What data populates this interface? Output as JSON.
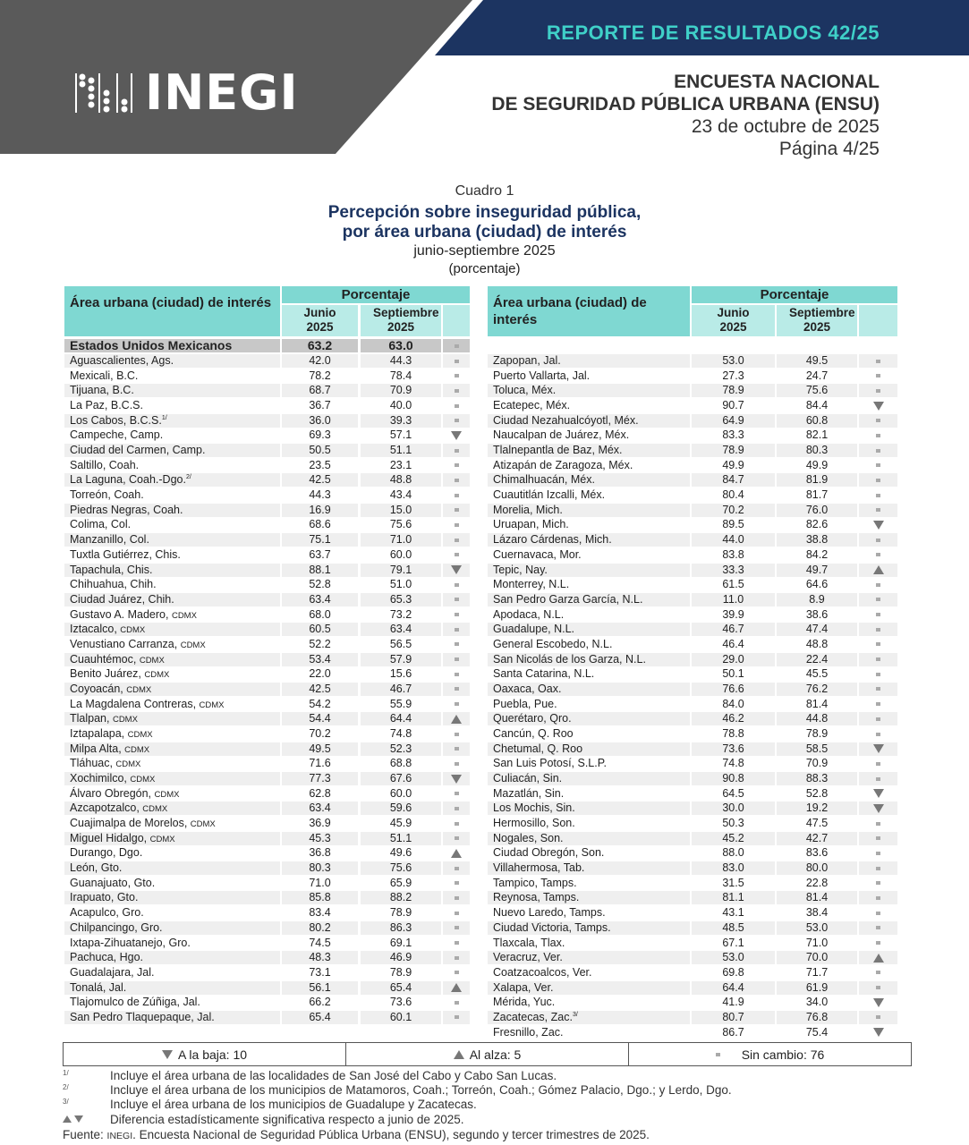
{
  "header": {
    "report": "REPORTE DE RESULTADOS 42/25",
    "logo": "INEGI",
    "survey_line1": "ENCUESTA NACIONAL",
    "survey_line2": "DE SEGURIDAD PÚBLICA URBANA (ENSU)",
    "date": "23 de octubre de 2025",
    "page": "Página 4/25"
  },
  "colors": {
    "gray": "#5a5a5a",
    "navy": "#1c3461",
    "teal_text": "#3fd0c8",
    "teal_header": "#7fd8d2",
    "teal_light": "#b9ebe7"
  },
  "caption": {
    "number": "Cuadro 1",
    "title1": "Percepción sobre inseguridad pública,",
    "title2": "por área urbana (ciudad) de interés",
    "period": "junio-septiembre 2025",
    "unit": "(porcentaje)"
  },
  "table_headers": {
    "area": "Área urbana (ciudad) de interés",
    "group": "Porcentaje",
    "jun": "Junio 2025",
    "sep": "Septiembre 2025"
  },
  "national": {
    "name": "Estados Unidos Mexicanos",
    "jun": "63.2",
    "sep": "63.0",
    "status": "same"
  },
  "left_rows": [
    {
      "name": "Aguascalientes, Ags.",
      "jun": "42.0",
      "sep": "44.3",
      "status": "same"
    },
    {
      "name": "Mexicali, B.C.",
      "jun": "78.2",
      "sep": "78.4",
      "status": "same"
    },
    {
      "name": "Tijuana, B.C.",
      "jun": "68.7",
      "sep": "70.9",
      "status": "same"
    },
    {
      "name": "La Paz, B.C.S.",
      "jun": "36.7",
      "sep": "40.0",
      "status": "same"
    },
    {
      "name": "Los Cabos, B.C.S.",
      "sup": "1/",
      "jun": "36.0",
      "sep": "39.3",
      "status": "same"
    },
    {
      "name": "Campeche, Camp.",
      "jun": "69.3",
      "sep": "57.1",
      "status": "down"
    },
    {
      "name": "Ciudad del Carmen, Camp.",
      "jun": "50.5",
      "sep": "51.1",
      "status": "same"
    },
    {
      "name": "Saltillo, Coah.",
      "jun": "23.5",
      "sep": "23.1",
      "status": "same"
    },
    {
      "name": "La Laguna, Coah.-Dgo.",
      "sup": "2/",
      "jun": "42.5",
      "sep": "48.8",
      "status": "same"
    },
    {
      "name": "Torreón, Coah.",
      "jun": "44.3",
      "sep": "43.4",
      "status": "same"
    },
    {
      "name": "Piedras Negras, Coah.",
      "jun": "16.9",
      "sep": "15.0",
      "status": "same"
    },
    {
      "name": "Colima, Col.",
      "jun": "68.6",
      "sep": "75.6",
      "status": "same"
    },
    {
      "name": "Manzanillo, Col.",
      "jun": "75.1",
      "sep": "71.0",
      "status": "same"
    },
    {
      "name": "Tuxtla Gutiérrez, Chis.",
      "jun": "63.7",
      "sep": "60.0",
      "status": "same"
    },
    {
      "name": "Tapachula, Chis.",
      "jun": "88.1",
      "sep": "79.1",
      "status": "down"
    },
    {
      "name": "Chihuahua, Chih.",
      "jun": "52.8",
      "sep": "51.0",
      "status": "same"
    },
    {
      "name": "Ciudad Juárez, Chih.",
      "jun": "63.4",
      "sep": "65.3",
      "status": "same"
    },
    {
      "name": "Gustavo A. Madero, ",
      "suffix": "CDMX",
      "jun": "68.0",
      "sep": "73.2",
      "status": "same"
    },
    {
      "name": "Iztacalco, ",
      "suffix": "CDMX",
      "jun": "60.5",
      "sep": "63.4",
      "status": "same"
    },
    {
      "name": "Venustiano Carranza, ",
      "suffix": "CDMX",
      "jun": "52.2",
      "sep": "56.5",
      "status": "same"
    },
    {
      "name": "Cuauhtémoc, ",
      "suffix": "CDMX",
      "jun": "53.4",
      "sep": "57.9",
      "status": "same"
    },
    {
      "name": "Benito Juárez, ",
      "suffix": "CDMX",
      "jun": "22.0",
      "sep": "15.6",
      "status": "same"
    },
    {
      "name": "Coyoacán, ",
      "suffix": "CDMX",
      "jun": "42.5",
      "sep": "46.7",
      "status": "same"
    },
    {
      "name": "La Magdalena Contreras, ",
      "suffix": "CDMX",
      "jun": "54.2",
      "sep": "55.9",
      "status": "same"
    },
    {
      "name": "Tlalpan, ",
      "suffix": "CDMX",
      "jun": "54.4",
      "sep": "64.4",
      "status": "up"
    },
    {
      "name": "Iztapalapa, ",
      "suffix": "CDMX",
      "jun": "70.2",
      "sep": "74.8",
      "status": "same"
    },
    {
      "name": "Milpa Alta, ",
      "suffix": "CDMX",
      "jun": "49.5",
      "sep": "52.3",
      "status": "same"
    },
    {
      "name": "Tláhuac, ",
      "suffix": "CDMX",
      "jun": "71.6",
      "sep": "68.8",
      "status": "same"
    },
    {
      "name": "Xochimilco, ",
      "suffix": "CDMX",
      "jun": "77.3",
      "sep": "67.6",
      "status": "down"
    },
    {
      "name": "Álvaro Obregón, ",
      "suffix": "CDMX",
      "jun": "62.8",
      "sep": "60.0",
      "status": "same"
    },
    {
      "name": "Azcapotzalco, ",
      "suffix": "CDMX",
      "jun": "63.4",
      "sep": "59.6",
      "status": "same"
    },
    {
      "name": "Cuajimalpa de Morelos, ",
      "suffix": "CDMX",
      "jun": "36.9",
      "sep": "45.9",
      "status": "same"
    },
    {
      "name": "Miguel Hidalgo, ",
      "suffix": "CDMX",
      "jun": "45.3",
      "sep": "51.1",
      "status": "same"
    },
    {
      "name": "Durango, Dgo.",
      "jun": "36.8",
      "sep": "49.6",
      "status": "up"
    },
    {
      "name": "León, Gto.",
      "jun": "80.3",
      "sep": "75.6",
      "status": "same"
    },
    {
      "name": "Guanajuato, Gto.",
      "jun": "71.0",
      "sep": "65.9",
      "status": "same"
    },
    {
      "name": "Irapuato, Gto.",
      "jun": "85.8",
      "sep": "88.2",
      "status": "same"
    },
    {
      "name": "Acapulco, Gro.",
      "jun": "83.4",
      "sep": "78.9",
      "status": "same"
    },
    {
      "name": "Chilpancingo, Gro.",
      "jun": "80.2",
      "sep": "86.3",
      "status": "same"
    },
    {
      "name": "Ixtapa-Zihuatanejo, Gro.",
      "jun": "74.5",
      "sep": "69.1",
      "status": "same"
    },
    {
      "name": "Pachuca, Hgo.",
      "jun": "48.3",
      "sep": "46.9",
      "status": "same"
    },
    {
      "name": "Guadalajara, Jal.",
      "jun": "73.1",
      "sep": "78.9",
      "status": "same"
    },
    {
      "name": "Tonalá, Jal.",
      "jun": "56.1",
      "sep": "65.4",
      "status": "up"
    },
    {
      "name": "Tlajomulco de Zúñiga, Jal.",
      "jun": "66.2",
      "sep": "73.6",
      "status": "same"
    },
    {
      "name": "San Pedro Tlaquepaque, Jal.",
      "jun": "65.4",
      "sep": "60.1",
      "status": "same"
    }
  ],
  "right_rows": [
    {
      "name": "Zapopan, Jal.",
      "jun": "53.0",
      "sep": "49.5",
      "status": "same"
    },
    {
      "name": "Puerto Vallarta, Jal.",
      "jun": "27.3",
      "sep": "24.7",
      "status": "same"
    },
    {
      "name": "Toluca, Méx.",
      "jun": "78.9",
      "sep": "75.6",
      "status": "same"
    },
    {
      "name": "Ecatepec, Méx.",
      "jun": "90.7",
      "sep": "84.4",
      "status": "down"
    },
    {
      "name": "Ciudad Nezahualcóyotl, Méx.",
      "jun": "64.9",
      "sep": "60.8",
      "status": "same"
    },
    {
      "name": "Naucalpan de Juárez, Méx.",
      "jun": "83.3",
      "sep": "82.1",
      "status": "same"
    },
    {
      "name": "Tlalnepantla de Baz, Méx.",
      "jun": "78.9",
      "sep": "80.3",
      "status": "same"
    },
    {
      "name": "Atizapán de Zaragoza, Méx.",
      "jun": "49.9",
      "sep": "49.9",
      "status": "same"
    },
    {
      "name": "Chimalhuacán, Méx.",
      "jun": "84.7",
      "sep": "81.9",
      "status": "same"
    },
    {
      "name": "Cuautitlán Izcalli, Méx.",
      "jun": "80.4",
      "sep": "81.7",
      "status": "same"
    },
    {
      "name": "Morelia, Mich.",
      "jun": "70.2",
      "sep": "76.0",
      "status": "same"
    },
    {
      "name": "Uruapan, Mich.",
      "jun": "89.5",
      "sep": "82.6",
      "status": "down"
    },
    {
      "name": "Lázaro Cárdenas, Mich.",
      "jun": "44.0",
      "sep": "38.8",
      "status": "same"
    },
    {
      "name": "Cuernavaca, Mor.",
      "jun": "83.8",
      "sep": "84.2",
      "status": "same"
    },
    {
      "name": "Tepic, Nay.",
      "jun": "33.3",
      "sep": "49.7",
      "status": "up"
    },
    {
      "name": "Monterrey, N.L.",
      "jun": "61.5",
      "sep": "64.6",
      "status": "same"
    },
    {
      "name": "San Pedro Garza García, N.L.",
      "jun": "11.0",
      "sep": "8.9",
      "status": "same"
    },
    {
      "name": "Apodaca, N.L.",
      "jun": "39.9",
      "sep": "38.6",
      "status": "same"
    },
    {
      "name": "Guadalupe, N.L.",
      "jun": "46.7",
      "sep": "47.4",
      "status": "same"
    },
    {
      "name": "General Escobedo, N.L.",
      "jun": "46.4",
      "sep": "48.8",
      "status": "same"
    },
    {
      "name": "San Nicolás de los Garza, N.L.",
      "jun": "29.0",
      "sep": "22.4",
      "status": "same"
    },
    {
      "name": "Santa Catarina, N.L.",
      "jun": "50.1",
      "sep": "45.5",
      "status": "same"
    },
    {
      "name": "Oaxaca, Oax.",
      "jun": "76.6",
      "sep": "76.2",
      "status": "same"
    },
    {
      "name": "Puebla, Pue.",
      "jun": "84.0",
      "sep": "81.4",
      "status": "same"
    },
    {
      "name": "Querétaro, Qro.",
      "jun": "46.2",
      "sep": "44.8",
      "status": "same"
    },
    {
      "name": "Cancún, Q. Roo",
      "jun": "78.8",
      "sep": "78.9",
      "status": "same"
    },
    {
      "name": "Chetumal, Q. Roo",
      "jun": "73.6",
      "sep": "58.5",
      "status": "down"
    },
    {
      "name": "San Luis Potosí, S.L.P.",
      "jun": "74.8",
      "sep": "70.9",
      "status": "same"
    },
    {
      "name": "Culiacán, Sin.",
      "jun": "90.8",
      "sep": "88.3",
      "status": "same"
    },
    {
      "name": "Mazatlán, Sin.",
      "jun": "64.5",
      "sep": "52.8",
      "status": "down"
    },
    {
      "name": "Los Mochis, Sin.",
      "jun": "30.0",
      "sep": "19.2",
      "status": "down"
    },
    {
      "name": "Hermosillo, Son.",
      "jun": "50.3",
      "sep": "47.5",
      "status": "same"
    },
    {
      "name": "Nogales, Son.",
      "jun": "45.2",
      "sep": "42.7",
      "status": "same"
    },
    {
      "name": "Ciudad Obregón, Son.",
      "jun": "88.0",
      "sep": "83.6",
      "status": "same"
    },
    {
      "name": "Villahermosa, Tab.",
      "jun": "83.0",
      "sep": "80.0",
      "status": "same"
    },
    {
      "name": "Tampico, Tamps.",
      "jun": "31.5",
      "sep": "22.8",
      "status": "same"
    },
    {
      "name": "Reynosa, Tamps.",
      "jun": "81.1",
      "sep": "81.4",
      "status": "same"
    },
    {
      "name": "Nuevo Laredo, Tamps.",
      "jun": "43.1",
      "sep": "38.4",
      "status": "same"
    },
    {
      "name": "Ciudad Victoria, Tamps.",
      "jun": "48.5",
      "sep": "53.0",
      "status": "same"
    },
    {
      "name": "Tlaxcala, Tlax.",
      "jun": "67.1",
      "sep": "71.0",
      "status": "same"
    },
    {
      "name": "Veracruz, Ver.",
      "jun": "53.0",
      "sep": "70.0",
      "status": "up"
    },
    {
      "name": "Coatzacoalcos, Ver.",
      "jun": "69.8",
      "sep": "71.7",
      "status": "same"
    },
    {
      "name": "Xalapa, Ver.",
      "jun": "64.4",
      "sep": "61.9",
      "status": "same"
    },
    {
      "name": "Mérida, Yuc.",
      "jun": "41.9",
      "sep": "34.0",
      "status": "down"
    },
    {
      "name": "Zacatecas, Zac.",
      "sup": "3/",
      "jun": "80.7",
      "sep": "76.8",
      "status": "same"
    },
    {
      "name": "Fresnillo, Zac.",
      "jun": "86.7",
      "sep": "75.4",
      "status": "down"
    }
  ],
  "legend": {
    "down": "A la baja: 10",
    "up": "Al alza: 5",
    "same": "Sin cambio: 76"
  },
  "footnotes": [
    {
      "key": "1/",
      "text": "Incluye el área urbana de las localidades de San José del Cabo y Cabo San Lucas."
    },
    {
      "key": "2/",
      "text": "Incluye el área urbana de los municipios de Matamoros, Coah.; Torreón, Coah.; Gómez Palacio, Dgo.; y Lerdo, Dgo."
    },
    {
      "key": "3/",
      "text": "Incluye el área urbana de los municipios de Guadalupe y Zacatecas."
    }
  ],
  "significance_note": "Diferencia estadísticamente significativa respecto a junio de 2025.",
  "source": {
    "label": "Fuente: ",
    "org": "INEGI",
    "text": ". Encuesta Nacional de Seguridad Pública Urbana (ENSU), segundo y tercer trimestres de 2025."
  }
}
